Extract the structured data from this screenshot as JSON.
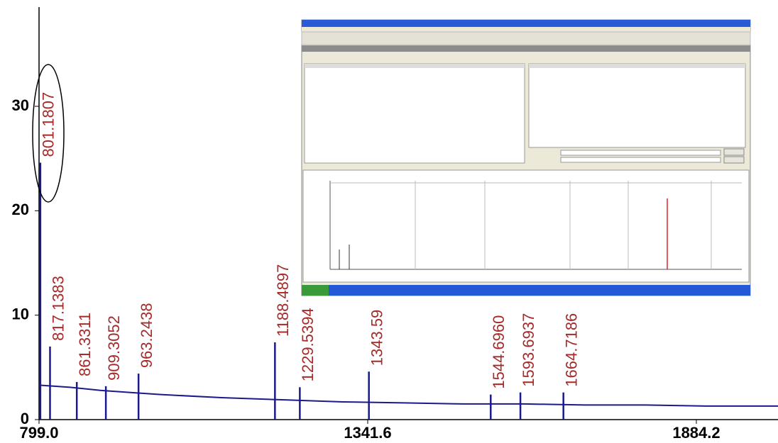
{
  "chart_data": {
    "type": "spectrum",
    "color": "#1a1a8c",
    "label_color": "#a52a2a",
    "x": [
      799,
      850,
      900,
      950,
      1000,
      1100,
      1200,
      1300,
      1400,
      1500,
      1600,
      1700,
      1800,
      1900,
      2019
    ],
    "values": [
      3.3,
      3.1,
      2.8,
      2.6,
      2.4,
      2.1,
      1.9,
      1.7,
      1.6,
      1.5,
      1.5,
      1.4,
      1.4,
      1.3,
      1.3
    ],
    "peaks": {
      "x": [
        801.1807,
        817.1383,
        861.3311,
        909.3052,
        963.2438,
        1188.4897,
        1229.5394,
        1343.59,
        1544.696,
        1593.6937,
        1664.7186
      ],
      "x_labels": [
        "801.1807",
        "817.1383",
        "861.3311",
        "909.3052",
        "963.2438",
        "1188.4897",
        "1229.5394",
        "1343.59",
        "1544.6960",
        "1593.6937",
        "1664.7186"
      ],
      "values": [
        24.6,
        7.0,
        3.6,
        3.2,
        4.4,
        7.4,
        3.1,
        4.6,
        2.4,
        2.6,
        2.6
      ]
    },
    "xlim": [
      799,
      2019
    ],
    "xticks": [
      {
        "value": 799,
        "label": "799.0"
      },
      1341.6,
      1884.2
    ],
    "ylim": [
      0,
      39.5
    ],
    "yticks": [
      0,
      10,
      20,
      30
    ]
  }
}
